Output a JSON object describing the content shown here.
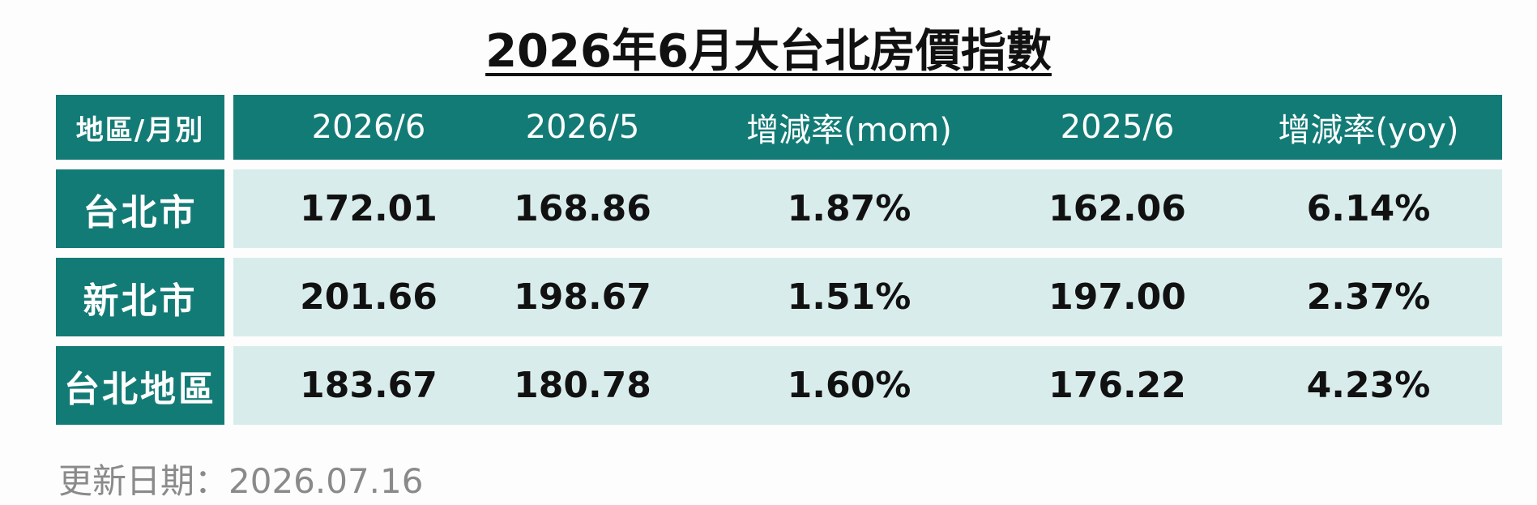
{
  "header": {
    "title": "2026年6月大台北房價指數"
  },
  "table": {
    "columns": [
      "地區/月別",
      "2026/6",
      "2026/5",
      "增減率(mom)",
      "2025/6",
      "增減率(yoy)"
    ],
    "rows": [
      [
        "台北市",
        "172.01",
        "168.86",
        "1.87%",
        "162.06",
        "6.14%"
      ],
      [
        "新北市",
        "201.66",
        "198.67",
        "1.51%",
        "197.00",
        "2.37%"
      ],
      [
        "台北地區",
        "183.67",
        "180.78",
        "1.60%",
        "176.22",
        "4.23%"
      ]
    ]
  },
  "footer": {
    "note": "更新日期：2026.07.16"
  }
}
